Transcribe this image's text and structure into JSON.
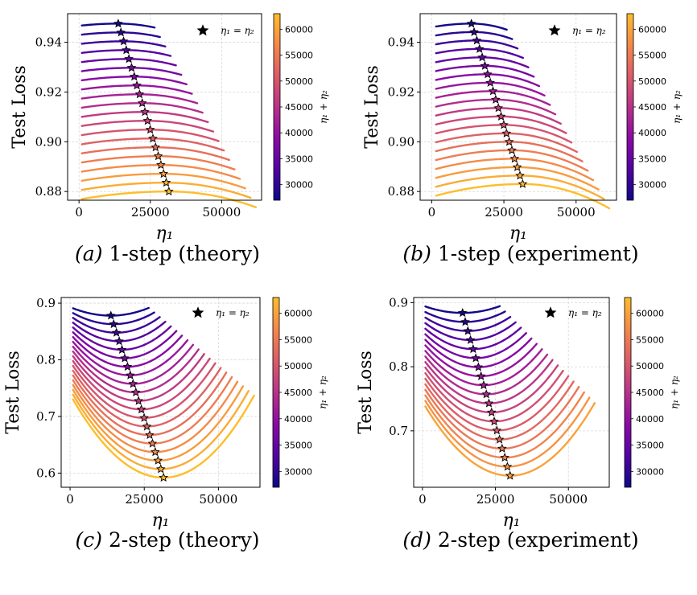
{
  "colors": {
    "colormap": "plasma",
    "colormap_stops": [
      "#0d0887",
      "#5302a3",
      "#8b0aa5",
      "#b83289",
      "#db5c68",
      "#f48849",
      "#febd2a"
    ],
    "star_fill": "#000000"
  },
  "colorbar": {
    "label": "η₁ + η₂",
    "range": [
      27000,
      63000
    ],
    "ticks": [
      "30000",
      "35000",
      "40000",
      "45000",
      "50000",
      "55000",
      "60000"
    ]
  },
  "legend": {
    "label": "η₁ = η₂",
    "marker": "star-icon",
    "placement": "top-right"
  },
  "chart_data": [
    {
      "type": "line",
      "panel": "a",
      "caption_letter": "(a)",
      "caption_text": " 1-step (theory)",
      "xlabel": "η₁",
      "ylabel": "Test Loss",
      "xlim": [
        -4000,
        64000
      ],
      "ylim": [
        0.8765,
        0.9515
      ],
      "xticks": [
        0,
        25000,
        50000
      ],
      "xtick_labels": [
        "0",
        "25000",
        "50000"
      ],
      "yticks": [
        0.88,
        0.9,
        0.92,
        0.94
      ],
      "ytick_labels": [
        "0.88",
        "0.90",
        "0.92",
        "0.94"
      ],
      "grid": true,
      "series": {
        "sum_start": 27500,
        "sum_end": 63000,
        "count": 20,
        "x_start": 1000,
        "y_top": 0.9475,
        "y_bottom": 0.88,
        "curvature": 0.0055,
        "shape": "shallow-concave"
      },
      "optimum": {
        "x_top": 13750,
        "x_bottom": 31500,
        "y_top": 0.9475,
        "y_bottom": 0.88
      }
    },
    {
      "type": "line",
      "panel": "b",
      "caption_letter": "(b)",
      "caption_text": " 1-step (experiment)",
      "xlabel": "η₁",
      "ylabel": "Test Loss",
      "xlim": [
        -4000,
        64000
      ],
      "ylim": [
        0.8765,
        0.9515
      ],
      "xticks": [
        0,
        25000,
        50000
      ],
      "xtick_labels": [
        "0",
        "25000",
        "50000"
      ],
      "yticks": [
        0.88,
        0.9,
        0.92,
        0.94
      ],
      "ytick_labels": [
        "0.88",
        "0.90",
        "0.92",
        "0.94"
      ],
      "grid": true,
      "series": {
        "sum_start": 27500,
        "sum_end": 63000,
        "count": 20,
        "x_start": 1500,
        "y_top": 0.9475,
        "y_bottom": 0.883,
        "curvature": 0.0085,
        "shape": "shallow-concave"
      },
      "optimum": {
        "x_top": 13750,
        "x_bottom": 31500,
        "y_top": 0.9475,
        "y_bottom": 0.883
      }
    },
    {
      "type": "line",
      "panel": "c",
      "caption_letter": "(c)",
      "caption_text": " 2-step (theory)",
      "xlabel": "η₁",
      "ylabel": "Test Loss",
      "xlim": [
        -3000,
        64000
      ],
      "ylim": [
        0.575,
        0.91
      ],
      "xticks": [
        0,
        25000,
        50000
      ],
      "xtick_labels": [
        "0",
        "25000",
        "50000"
      ],
      "yticks": [
        0.6,
        0.7,
        0.8,
        0.9
      ],
      "ytick_labels": [
        "0.6",
        "0.7",
        "0.8",
        "0.9"
      ],
      "grid": true,
      "series": {
        "sum_start": 27500,
        "sum_end": 63000,
        "count": 20,
        "x_start": 1000,
        "y_min_top": 0.878,
        "y_min_bottom": 0.592,
        "left_rise_top": 0.013,
        "left_rise_bottom": 0.138,
        "shape": "convex-valley"
      },
      "optimum": {
        "x_top": 13750,
        "x_bottom": 31500
      }
    },
    {
      "type": "line",
      "panel": "d",
      "caption_letter": "(d)",
      "caption_text": " 2-step (experiment)",
      "xlabel": "η₁",
      "ylabel": "Test Loss",
      "xlim": [
        -3000,
        64000
      ],
      "ylim": [
        0.612,
        0.908
      ],
      "xticks": [
        0,
        25000,
        50000
      ],
      "xtick_labels": [
        "0",
        "25000",
        "50000"
      ],
      "yticks": [
        0.7,
        0.8,
        0.9
      ],
      "ytick_labels": [
        "0.7",
        "0.8",
        "0.9"
      ],
      "grid": true,
      "series": {
        "sum_start": 27500,
        "sum_end": 60000,
        "count": 19,
        "x_start": 1000,
        "y_min_top": 0.884,
        "y_min_bottom": 0.63,
        "left_rise_top": 0.01,
        "left_rise_bottom": 0.108,
        "shape": "convex-valley"
      },
      "optimum": {
        "x_top": 13750,
        "x_bottom": 30000
      }
    }
  ]
}
